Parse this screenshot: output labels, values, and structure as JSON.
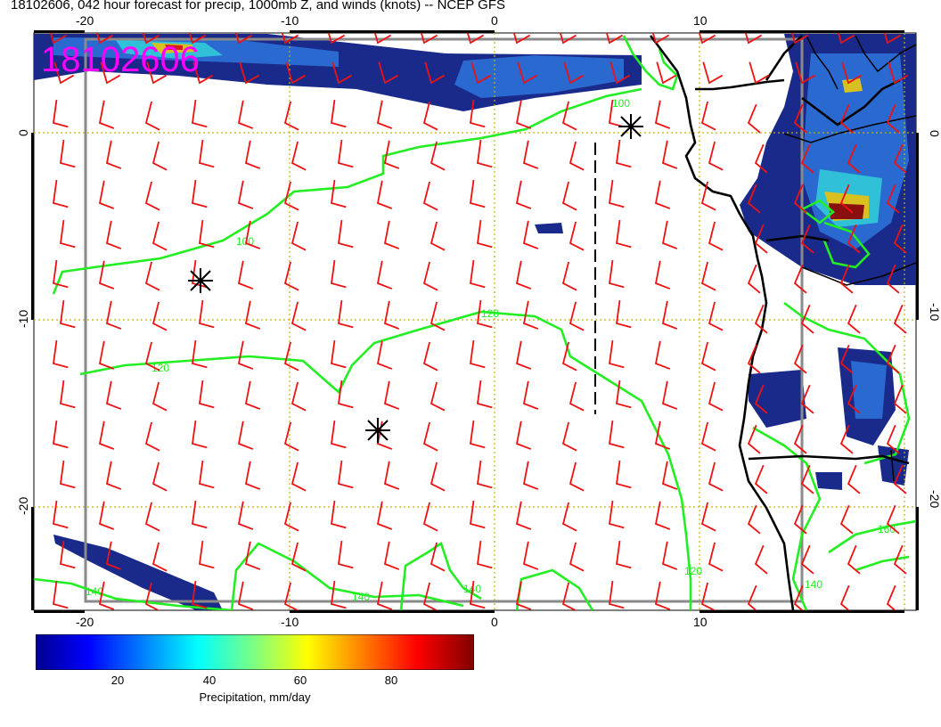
{
  "title": "18102606, 042 hour forecast for precip, 1000mb Z, and winds (knots) -- NCEP GFS",
  "stamp": "18102606",
  "axes": {
    "lon_ticks": [
      "-20",
      "-10",
      "0",
      "10"
    ],
    "lat_ticks": [
      "0",
      "-10",
      "-20"
    ]
  },
  "contours": {
    "color": "#22ee22",
    "labels": [
      "100",
      "100",
      "120",
      "120",
      "120",
      "140",
      "140",
      "140",
      "140",
      "160"
    ]
  },
  "colorbar": {
    "ticks": [
      "20",
      "40",
      "60",
      "80"
    ],
    "label": "Precipitation, mm/day"
  },
  "colors": {
    "wind_barbs": "#ee1111",
    "stamp": "#ff00ff",
    "grid": "#c8b400",
    "coast": "#000000"
  },
  "markers": [
    "pressure-center-nw",
    "pressure-center-central",
    "pressure-center-ne"
  ]
}
